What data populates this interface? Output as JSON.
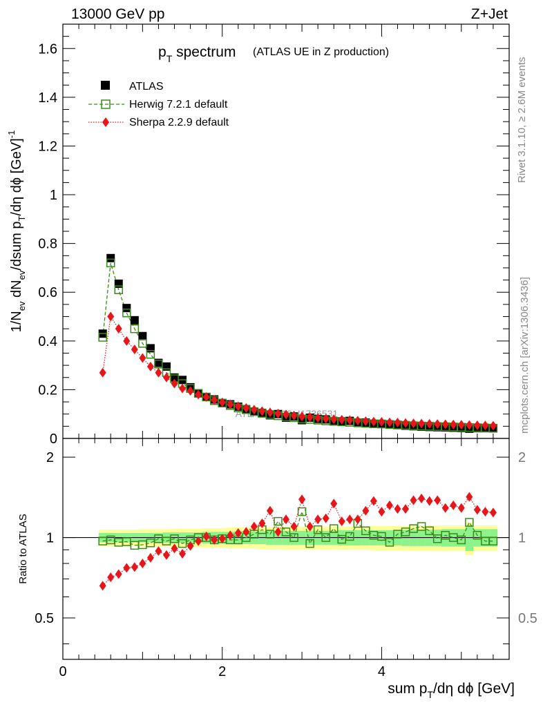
{
  "header": {
    "energy": "13000 GeV pp",
    "process": "Z+Jet"
  },
  "side": {
    "rivet": "Rivet 3.1.10, ≥ 2.6M events",
    "site": "mcplots.cern.ch [arXiv:1306.3436]"
  },
  "watermark": "ATLAS_2019_I1736531",
  "colors": {
    "atlas": "#000000",
    "herwig": "#3a8a1a",
    "sherpa": "#e8161b",
    "band_inner": "#8cf28c",
    "band_outer": "#ffff99"
  },
  "chart_data": [
    {
      "type": "scatter",
      "title": {
        "main": "p",
        "sub": "T",
        "rest": " spectrum",
        "note": "(ATLAS UE in Z production)"
      },
      "ylabel": "1/N_ev dN_ev/dsum p_T/dη dφ [GeV]^-1",
      "xlim": [
        0,
        5.6
      ],
      "ylim": [
        0,
        1.7
      ],
      "yticks": [
        "0",
        "0.2",
        "0.4",
        "0.6",
        "0.8",
        "1",
        "1.2",
        "1.4",
        "1.6"
      ],
      "legend": {
        "placement": "top-left",
        "atlas": "ATLAS",
        "herwig": "Herwig 7.2.1 default",
        "sherpa": "Sherpa 2.2.9 default"
      },
      "x": [
        0.5,
        0.6,
        0.7,
        0.8,
        0.9,
        1.0,
        1.1,
        1.2,
        1.3,
        1.4,
        1.5,
        1.6,
        1.7,
        1.8,
        1.9,
        2.0,
        2.1,
        2.2,
        2.3,
        2.4,
        2.5,
        2.6,
        2.7,
        2.8,
        2.9,
        3.0,
        3.1,
        3.2,
        3.3,
        3.4,
        3.5,
        3.6,
        3.7,
        3.8,
        3.9,
        4.0,
        4.1,
        4.2,
        4.3,
        4.4,
        4.5,
        4.6,
        4.7,
        4.8,
        4.9,
        5.0,
        5.1,
        5.2,
        5.3,
        5.4
      ],
      "series": [
        {
          "name": "ATLAS",
          "values": [
            0.43,
            0.74,
            0.635,
            0.535,
            0.485,
            0.42,
            0.37,
            0.31,
            0.295,
            0.25,
            0.24,
            0.21,
            0.185,
            0.17,
            0.16,
            0.145,
            0.14,
            0.13,
            0.12,
            0.11,
            0.105,
            0.095,
            0.1,
            0.085,
            0.09,
            0.075,
            0.085,
            0.08,
            0.078,
            0.07,
            0.07,
            0.072,
            0.065,
            0.065,
            0.06,
            0.06,
            0.058,
            0.056,
            0.052,
            0.05,
            0.048,
            0.047,
            0.046,
            0.045,
            0.044,
            0.043,
            0.04,
            0.042,
            0.042,
            0.041
          ]
        },
        {
          "name": "Herwig 7.2.1 default",
          "values": [
            0.415,
            0.72,
            0.61,
            0.515,
            0.45,
            0.39,
            0.345,
            0.305,
            0.27,
            0.245,
            0.225,
            0.205,
            0.185,
            0.17,
            0.155,
            0.145,
            0.135,
            0.125,
            0.118,
            0.11,
            0.103,
            0.098,
            0.093,
            0.088,
            0.085,
            0.08,
            0.078,
            0.075,
            0.072,
            0.07,
            0.068,
            0.066,
            0.064,
            0.062,
            0.06,
            0.059,
            0.057,
            0.055,
            0.054,
            0.052,
            0.051,
            0.05,
            0.049,
            0.048,
            0.047,
            0.046,
            0.045,
            0.044,
            0.043,
            0.042
          ]
        },
        {
          "name": "Sherpa 2.2.9 default",
          "values": [
            0.27,
            0.5,
            0.45,
            0.4,
            0.365,
            0.33,
            0.295,
            0.27,
            0.25,
            0.225,
            0.205,
            0.195,
            0.18,
            0.17,
            0.158,
            0.148,
            0.14,
            0.132,
            0.125,
            0.118,
            0.112,
            0.107,
            0.102,
            0.098,
            0.094,
            0.09,
            0.087,
            0.084,
            0.081,
            0.079,
            0.077,
            0.075,
            0.073,
            0.071,
            0.069,
            0.068,
            0.066,
            0.065,
            0.063,
            0.062,
            0.061,
            0.06,
            0.059,
            0.058,
            0.057,
            0.056,
            0.055,
            0.054,
            0.053,
            0.052
          ]
        }
      ]
    },
    {
      "type": "scatter",
      "ylabel": "Ratio to ATLAS",
      "xlabel": "sum p_T/dη dφ [GeV]",
      "xlim": [
        0,
        5.6
      ],
      "ylim": [
        0.35,
        2.35
      ],
      "yticks": [
        "0.5",
        "1",
        "2"
      ],
      "xticks": [
        "0",
        "2",
        "4"
      ],
      "reference_line": 1,
      "x": [
        0.5,
        0.6,
        0.7,
        0.8,
        0.9,
        1.0,
        1.1,
        1.2,
        1.3,
        1.4,
        1.5,
        1.6,
        1.7,
        1.8,
        1.9,
        2.0,
        2.1,
        2.2,
        2.3,
        2.4,
        2.5,
        2.6,
        2.7,
        2.8,
        2.9,
        3.0,
        3.1,
        3.2,
        3.3,
        3.4,
        3.5,
        3.6,
        3.7,
        3.8,
        3.9,
        4.0,
        4.1,
        4.2,
        4.3,
        4.4,
        4.5,
        4.6,
        4.7,
        4.8,
        4.9,
        5.0,
        5.1,
        5.2,
        5.3,
        5.4
      ],
      "band_inner_halfwidth": [
        0.04,
        0.04,
        0.04,
        0.04,
        0.04,
        0.04,
        0.04,
        0.04,
        0.045,
        0.045,
        0.045,
        0.045,
        0.045,
        0.05,
        0.05,
        0.05,
        0.05,
        0.055,
        0.055,
        0.055,
        0.055,
        0.06,
        0.06,
        0.06,
        0.06,
        0.06,
        0.06,
        0.06,
        0.06,
        0.06,
        0.065,
        0.065,
        0.065,
        0.065,
        0.065,
        0.065,
        0.065,
        0.065,
        0.07,
        0.07,
        0.07,
        0.07,
        0.07,
        0.075,
        0.075,
        0.075,
        0.11,
        0.075,
        0.075,
        0.075
      ],
      "band_outer_halfwidth": [
        0.07,
        0.07,
        0.07,
        0.07,
        0.07,
        0.075,
        0.075,
        0.075,
        0.075,
        0.08,
        0.08,
        0.08,
        0.08,
        0.085,
        0.085,
        0.085,
        0.09,
        0.09,
        0.09,
        0.09,
        0.095,
        0.095,
        0.095,
        0.1,
        0.1,
        0.1,
        0.1,
        0.1,
        0.1,
        0.1,
        0.1,
        0.1,
        0.1,
        0.1,
        0.105,
        0.105,
        0.105,
        0.105,
        0.105,
        0.11,
        0.11,
        0.11,
        0.11,
        0.11,
        0.11,
        0.11,
        0.14,
        0.11,
        0.11,
        0.11
      ],
      "series": [
        {
          "name": "Herwig 7.2.1 default",
          "values": [
            0.97,
            0.98,
            0.96,
            0.965,
            0.935,
            0.94,
            0.955,
            0.99,
            0.97,
            0.99,
            0.95,
            0.98,
            1.0,
            1.0,
            0.98,
            0.99,
            0.98,
            0.98,
            1.0,
            1.03,
            1.07,
            1.03,
            1.15,
            1.05,
            1.0,
            1.25,
            0.95,
            1.07,
            1.0,
            1.08,
            0.985,
            1.01,
            1.13,
            1.06,
            1.02,
            1.01,
            0.96,
            1.03,
            1.05,
            1.08,
            1.1,
            1.06,
            0.99,
            1.02,
            1.0,
            0.98,
            1.14,
            1.02,
            0.97,
            0.97
          ]
        },
        {
          "name": "Sherpa 2.2.9 default",
          "values": [
            0.66,
            0.71,
            0.73,
            0.77,
            0.775,
            0.8,
            0.84,
            0.89,
            0.86,
            0.91,
            0.87,
            0.93,
            0.97,
            1.01,
            0.98,
            0.99,
            1.02,
            1.04,
            1.05,
            1.1,
            1.13,
            1.26,
            1.05,
            1.17,
            1.1,
            1.39,
            1.1,
            1.17,
            1.18,
            1.34,
            1.15,
            1.17,
            1.17,
            1.26,
            1.37,
            1.25,
            1.32,
            1.28,
            1.28,
            1.38,
            1.4,
            1.37,
            1.38,
            1.29,
            1.32,
            1.29,
            1.42,
            1.27,
            1.25,
            1.24
          ]
        }
      ]
    }
  ]
}
